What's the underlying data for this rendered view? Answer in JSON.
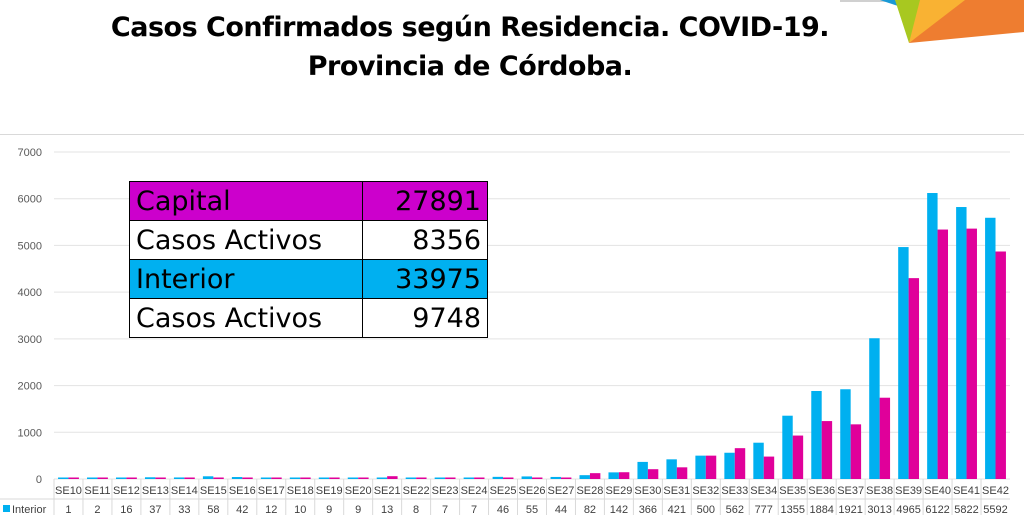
{
  "header": {
    "title_line1": "Casos Confirmados según Residencia. COVID-19.",
    "title_line2": "Provincia de Córdoba."
  },
  "summary_table": [
    {
      "label": "Capital",
      "value": "27891",
      "bg": "#cc00cc"
    },
    {
      "label": "Casos Activos",
      "value": "8356",
      "bg": "#ffffff"
    },
    {
      "label": "Interior",
      "value": "33975",
      "bg": "#00b0f0"
    },
    {
      "label": "Casos Activos",
      "value": "9748",
      "bg": "#ffffff"
    }
  ],
  "chart_data": {
    "type": "bar",
    "title": "",
    "ylim": [
      0,
      7000
    ],
    "yticks": [
      0,
      1000,
      2000,
      3000,
      4000,
      5000,
      6000,
      7000
    ],
    "grid": true,
    "categories": [
      "SE10",
      "SE11",
      "SE12",
      "SE13",
      "SE14",
      "SE15",
      "SE16",
      "SE17",
      "SE18",
      "SE19",
      "SE20",
      "SE21",
      "SE22",
      "SE23",
      "SE24",
      "SE25",
      "SE26",
      "SE27",
      "SE28",
      "SE29",
      "SE30",
      "SE31",
      "SE32",
      "SE33",
      "SE34",
      "SE35",
      "SE36",
      "SE37",
      "SE38",
      "SE39",
      "SE40",
      "SE41",
      "SE42"
    ],
    "series": [
      {
        "name": "Interior",
        "color": "#00b0f0",
        "values": [
          1,
          2,
          16,
          37,
          33,
          58,
          42,
          12,
          10,
          9,
          9,
          13,
          8,
          7,
          7,
          46,
          55,
          44,
          82,
          142,
          366,
          421,
          500,
          562,
          777,
          1355,
          1884,
          1921,
          3013,
          4965,
          6122,
          5822,
          5592
        ]
      },
      {
        "name": "Capital",
        "color": "#e0009a",
        "values": [
          0,
          0,
          0,
          5,
          20,
          10,
          5,
          3,
          15,
          12,
          12,
          60,
          3,
          2,
          10,
          20,
          30,
          5,
          125,
          145,
          210,
          250,
          500,
          660,
          480,
          930,
          1240,
          1170,
          1740,
          4300,
          5340,
          5360,
          4870
        ]
      }
    ],
    "table_row_label": "Interior"
  }
}
